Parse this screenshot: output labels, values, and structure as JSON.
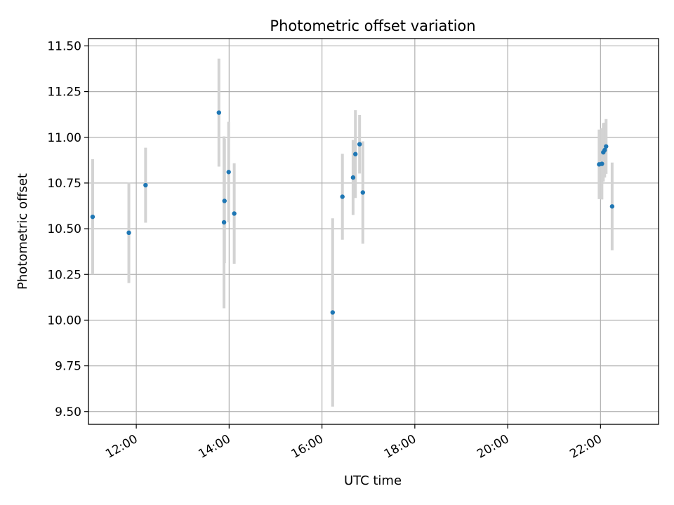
{
  "chart_data": {
    "type": "scatter",
    "title": "Photometric offset variation",
    "xlabel": "UTC time",
    "ylabel": "Photometric offset",
    "x_unit": "hours (UTC)",
    "xlim": [
      10.97,
      23.25
    ],
    "ylim": [
      9.43,
      11.54
    ],
    "x_ticks": [
      {
        "value": 12,
        "label": "12:00"
      },
      {
        "value": 14,
        "label": "14:00"
      },
      {
        "value": 16,
        "label": "16:00"
      },
      {
        "value": 18,
        "label": "18:00"
      },
      {
        "value": 20,
        "label": "20:00"
      },
      {
        "value": 22,
        "label": "22:00"
      }
    ],
    "y_ticks": [
      {
        "value": 9.5,
        "label": "9.50"
      },
      {
        "value": 9.75,
        "label": "9.75"
      },
      {
        "value": 10.0,
        "label": "10.00"
      },
      {
        "value": 10.25,
        "label": "10.25"
      },
      {
        "value": 10.5,
        "label": "10.50"
      },
      {
        "value": 10.75,
        "label": "10.75"
      },
      {
        "value": 11.0,
        "label": "11.00"
      },
      {
        "value": 11.25,
        "label": "11.25"
      },
      {
        "value": 11.5,
        "label": "11.50"
      }
    ],
    "grid": true,
    "colors": {
      "point": "#1f77b4",
      "errorbar": "#d3d3d3",
      "grid": "#b0b0b0",
      "axes": "#000000"
    },
    "points": [
      {
        "x": 11.06,
        "y": 10.565,
        "err": 0.315
      },
      {
        "x": 11.84,
        "y": 10.478,
        "err": 0.275
      },
      {
        "x": 12.2,
        "y": 10.738,
        "err": 0.205
      },
      {
        "x": 13.78,
        "y": 11.135,
        "err": 0.295
      },
      {
        "x": 13.89,
        "y": 10.535,
        "err": 0.47
      },
      {
        "x": 13.9,
        "y": 10.652,
        "err": 0.34
      },
      {
        "x": 13.99,
        "y": 10.81,
        "err": 0.275
      },
      {
        "x": 14.11,
        "y": 10.583,
        "err": 0.275
      },
      {
        "x": 16.23,
        "y": 10.042,
        "err": 0.515
      },
      {
        "x": 16.44,
        "y": 10.675,
        "err": 0.235
      },
      {
        "x": 16.67,
        "y": 10.78,
        "err": 0.205
      },
      {
        "x": 16.72,
        "y": 10.908,
        "err": 0.24
      },
      {
        "x": 16.81,
        "y": 10.962,
        "err": 0.16
      },
      {
        "x": 16.88,
        "y": 10.698,
        "err": 0.28
      },
      {
        "x": 21.97,
        "y": 10.852,
        "err": 0.19
      },
      {
        "x": 22.03,
        "y": 10.855,
        "err": 0.195
      },
      {
        "x": 22.06,
        "y": 10.918,
        "err": 0.16
      },
      {
        "x": 22.09,
        "y": 10.93,
        "err": 0.15
      },
      {
        "x": 22.12,
        "y": 10.95,
        "err": 0.15
      },
      {
        "x": 22.25,
        "y": 10.622,
        "err": 0.24
      }
    ]
  }
}
